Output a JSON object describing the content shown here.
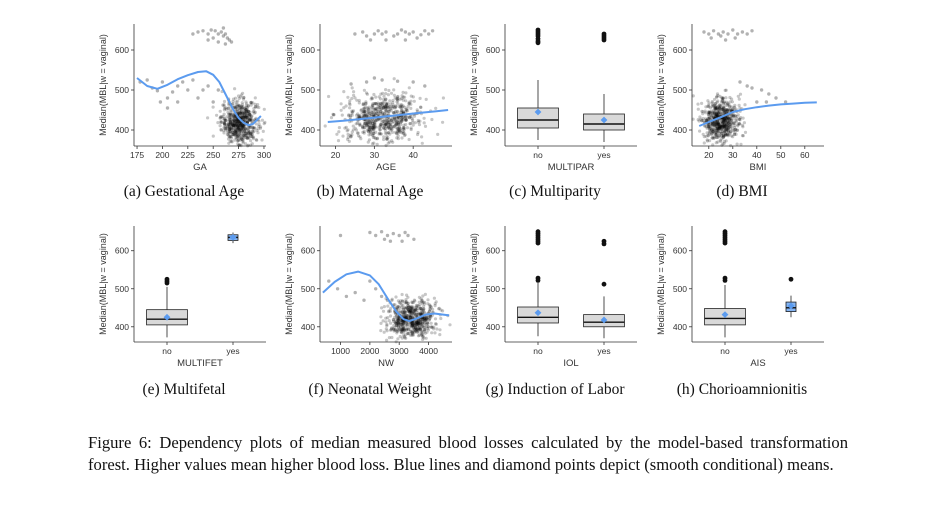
{
  "figure": {
    "caption": "Figure 6: Dependency plots of median measured blood losses calculated by the model-based transformation forest. Higher values mean higher blood loss. Blue lines and diamond points depict (smooth conditional) means."
  },
  "colors": {
    "mean": "#5b9bef",
    "box_fill": "#d9d9d9",
    "points": "#000000"
  },
  "chart_data": [
    {
      "id": "a",
      "type": "scatter",
      "caption": "(a) Gestational Age",
      "xlabel": "GA",
      "ylabel": "Median(MBL|w = vaginal)",
      "xlim": [
        172,
        302
      ],
      "ylim": [
        360,
        665
      ],
      "xticks": [
        175,
        200,
        225,
        250,
        275,
        300
      ],
      "yticks": [
        400,
        500,
        600
      ],
      "cloud": [
        {
          "cx": 276,
          "cy": 420,
          "sx": 9,
          "sy": 28,
          "n": 600
        }
      ],
      "extra_points": [
        [
          178,
          520
        ],
        [
          185,
          525
        ],
        [
          190,
          505
        ],
        [
          195,
          498
        ],
        [
          200,
          520
        ],
        [
          205,
          480
        ],
        [
          210,
          495
        ],
        [
          215,
          470
        ],
        [
          205,
          455
        ],
        [
          215,
          510
        ],
        [
          220,
          520
        ],
        [
          225,
          500
        ],
        [
          230,
          525
        ],
        [
          235,
          480
        ],
        [
          240,
          500
        ],
        [
          245,
          510
        ],
        [
          250,
          470
        ],
        [
          255,
          500
        ],
        [
          198,
          470
        ],
        [
          230,
          640
        ],
        [
          235,
          645
        ],
        [
          240,
          648
        ],
        [
          245,
          640
        ],
        [
          248,
          650
        ],
        [
          252,
          648
        ],
        [
          255,
          640
        ],
        [
          258,
          645
        ],
        [
          260,
          635
        ],
        [
          262,
          640
        ],
        [
          264,
          630
        ],
        [
          266,
          625
        ],
        [
          268,
          620
        ],
        [
          260,
          655
        ],
        [
          250,
          630
        ],
        [
          245,
          625
        ],
        [
          255,
          620
        ],
        [
          262,
          615
        ]
      ],
      "mean_line": [
        [
          175,
          530
        ],
        [
          185,
          510
        ],
        [
          195,
          503
        ],
        [
          205,
          513
        ],
        [
          215,
          527
        ],
        [
          225,
          537
        ],
        [
          235,
          545
        ],
        [
          243,
          547
        ],
        [
          250,
          538
        ],
        [
          256,
          520
        ],
        [
          262,
          490
        ],
        [
          266,
          470
        ],
        [
          270,
          450
        ],
        [
          275,
          430
        ],
        [
          280,
          418
        ],
        [
          285,
          412
        ],
        [
          289,
          415
        ],
        [
          293,
          425
        ],
        [
          297,
          435
        ]
      ]
    },
    {
      "id": "b",
      "type": "scatter",
      "caption": "(b) Maternal Age",
      "xlabel": "AGE",
      "ylabel": "Median(MBL|w = vaginal)",
      "xlim": [
        16,
        50
      ],
      "ylim": [
        360,
        665
      ],
      "xticks": [
        20,
        30,
        40
      ],
      "yticks": [
        400,
        500,
        600
      ],
      "cloud": [
        {
          "cx": 32,
          "cy": 430,
          "sx": 5.2,
          "sy": 30,
          "n": 650
        }
      ],
      "extra_points": [
        [
          25,
          640
        ],
        [
          27,
          645
        ],
        [
          28,
          635
        ],
        [
          30,
          640
        ],
        [
          31,
          648
        ],
        [
          32,
          640
        ],
        [
          33,
          645
        ],
        [
          35,
          635
        ],
        [
          36,
          640
        ],
        [
          37,
          650
        ],
        [
          38,
          645
        ],
        [
          39,
          640
        ],
        [
          40,
          645
        ],
        [
          42,
          638
        ],
        [
          43,
          648
        ],
        [
          44,
          640
        ],
        [
          45,
          648
        ],
        [
          33,
          625
        ],
        [
          38,
          625
        ],
        [
          41,
          630
        ],
        [
          29,
          625
        ],
        [
          28,
          520
        ],
        [
          32,
          525
        ],
        [
          40,
          520
        ],
        [
          43,
          510
        ],
        [
          24,
          515
        ],
        [
          30,
          530
        ],
        [
          36,
          522
        ]
      ],
      "mean_line": [
        [
          18,
          420
        ],
        [
          22,
          423
        ],
        [
          26,
          427
        ],
        [
          30,
          431
        ],
        [
          34,
          435
        ],
        [
          38,
          439
        ],
        [
          42,
          443
        ],
        [
          46,
          447
        ],
        [
          49,
          450
        ]
      ]
    },
    {
      "id": "c",
      "type": "box",
      "caption": "(c) Multiparity",
      "xlabel": "MULTIPAR",
      "ylabel": "Median(MBL|w = vaginal)",
      "ylim": [
        360,
        665
      ],
      "yticks": [
        400,
        500,
        600
      ],
      "categories": [
        "no",
        "yes"
      ],
      "boxes": [
        {
          "q1": 405,
          "median": 425,
          "q3": 455,
          "lower": 375,
          "upper": 525,
          "mean": 445,
          "outliers": [
            650,
            645,
            640,
            635,
            628,
            622,
            618
          ]
        },
        {
          "q1": 400,
          "median": 415,
          "q3": 440,
          "lower": 370,
          "upper": 490,
          "mean": 425,
          "outliers": [
            640,
            635,
            630,
            625
          ]
        }
      ]
    },
    {
      "id": "d",
      "type": "scatter",
      "caption": "(d) BMI",
      "xlabel": "BMI",
      "ylabel": "Median(MBL|w = vaginal)",
      "xlim": [
        13,
        68
      ],
      "ylim": [
        360,
        665
      ],
      "xticks": [
        20,
        30,
        40,
        50,
        60
      ],
      "yticks": [
        400,
        500,
        600
      ],
      "cloud": [
        {
          "cx": 25,
          "cy": 425,
          "sx": 4,
          "sy": 28,
          "n": 600
        }
      ],
      "extra_points": [
        [
          18,
          645
        ],
        [
          20,
          640
        ],
        [
          22,
          648
        ],
        [
          24,
          640
        ],
        [
          25,
          635
        ],
        [
          26,
          645
        ],
        [
          28,
          640
        ],
        [
          30,
          650
        ],
        [
          32,
          640
        ],
        [
          34,
          645
        ],
        [
          36,
          640
        ],
        [
          38,
          648
        ],
        [
          21,
          630
        ],
        [
          27,
          625
        ],
        [
          31,
          630
        ],
        [
          38,
          505
        ],
        [
          42,
          500
        ],
        [
          45,
          490
        ],
        [
          48,
          480
        ],
        [
          52,
          470
        ],
        [
          40,
          470
        ],
        [
          36,
          510
        ],
        [
          33,
          520
        ],
        [
          44,
          470
        ]
      ],
      "mean_line": [
        [
          16,
          410
        ],
        [
          20,
          420
        ],
        [
          25,
          432
        ],
        [
          30,
          445
        ],
        [
          35,
          452
        ],
        [
          40,
          457
        ],
        [
          45,
          461
        ],
        [
          50,
          464
        ],
        [
          55,
          466
        ],
        [
          60,
          468
        ],
        [
          65,
          469
        ]
      ]
    },
    {
      "id": "e",
      "type": "box",
      "caption": "(e) Multifetal",
      "xlabel": "MULTIFET",
      "ylabel": "Median(MBL|w = vaginal)",
      "ylim": [
        360,
        665
      ],
      "yticks": [
        400,
        500,
        600
      ],
      "categories": [
        "no",
        "yes"
      ],
      "boxes": [
        {
          "q1": 405,
          "median": 420,
          "q3": 445,
          "lower": 372,
          "upper": 505,
          "mean": 425,
          "outliers": [
            525,
            520,
            515
          ]
        },
        {
          "q1": 627,
          "median": 635,
          "q3": 642,
          "lower": 620,
          "upper": 648,
          "mean": 635,
          "outliers": []
        }
      ]
    },
    {
      "id": "f",
      "type": "scatter",
      "caption": "(f) Neonatal Weight",
      "xlabel": "NW",
      "ylabel": "Median(MBL|w = vaginal)",
      "xlim": [
        300,
        4800
      ],
      "ylim": [
        360,
        665
      ],
      "xticks": [
        1000,
        2000,
        3000,
        4000
      ],
      "yticks": [
        400,
        500,
        600
      ],
      "cloud": [
        {
          "cx": 3400,
          "cy": 420,
          "sx": 420,
          "sy": 26,
          "n": 600
        }
      ],
      "extra_points": [
        [
          600,
          520
        ],
        [
          900,
          500
        ],
        [
          1200,
          480
        ],
        [
          1500,
          490
        ],
        [
          1800,
          470
        ],
        [
          2000,
          520
        ],
        [
          2200,
          500
        ],
        [
          2400,
          480
        ],
        [
          2600,
          470
        ],
        [
          1000,
          640
        ],
        [
          2000,
          648
        ],
        [
          2200,
          640
        ],
        [
          2400,
          650
        ],
        [
          2600,
          640
        ],
        [
          2800,
          645
        ],
        [
          3000,
          640
        ],
        [
          3200,
          648
        ],
        [
          3300,
          640
        ],
        [
          3500,
          630
        ],
        [
          2700,
          625
        ],
        [
          2500,
          630
        ],
        [
          3100,
          625
        ]
      ],
      "mean_line": [
        [
          400,
          490
        ],
        [
          800,
          518
        ],
        [
          1200,
          538
        ],
        [
          1600,
          545
        ],
        [
          2000,
          535
        ],
        [
          2300,
          512
        ],
        [
          2600,
          475
        ],
        [
          2900,
          440
        ],
        [
          3150,
          420
        ],
        [
          3350,
          415
        ],
        [
          3600,
          422
        ],
        [
          3900,
          432
        ],
        [
          4200,
          435
        ],
        [
          4500,
          432
        ],
        [
          4700,
          430
        ]
      ]
    },
    {
      "id": "g",
      "type": "box",
      "caption": "(g) Induction of Labor",
      "xlabel": "IOL",
      "ylabel": "Median(MBL|w = vaginal)",
      "ylim": [
        360,
        665
      ],
      "yticks": [
        400,
        500,
        600
      ],
      "categories": [
        "no",
        "yes"
      ],
      "boxes": [
        {
          "q1": 410,
          "median": 425,
          "q3": 452,
          "lower": 375,
          "upper": 515,
          "mean": 437,
          "outliers": [
            650,
            645,
            640,
            635,
            630,
            625,
            620,
            528,
            522
          ]
        },
        {
          "q1": 400,
          "median": 412,
          "q3": 432,
          "lower": 370,
          "upper": 480,
          "mean": 418,
          "outliers": [
            625,
            618,
            512
          ]
        }
      ]
    },
    {
      "id": "h",
      "type": "box",
      "caption": "(h) Chorioamnionitis",
      "xlabel": "AIS",
      "ylabel": "Median(MBL|w = vaginal)",
      "ylim": [
        360,
        665
      ],
      "yticks": [
        400,
        500,
        600
      ],
      "categories": [
        "no",
        "yes"
      ],
      "boxes": [
        {
          "q1": 405,
          "median": 422,
          "q3": 448,
          "lower": 372,
          "upper": 510,
          "mean": 432,
          "outliers": [
            650,
            645,
            640,
            635,
            630,
            625,
            620,
            528,
            522
          ]
        },
        {
          "q1": 440,
          "median": 450,
          "q3": 465,
          "lower": 425,
          "upper": 482,
          "mean": 455,
          "outliers": [
            525
          ]
        }
      ]
    }
  ]
}
